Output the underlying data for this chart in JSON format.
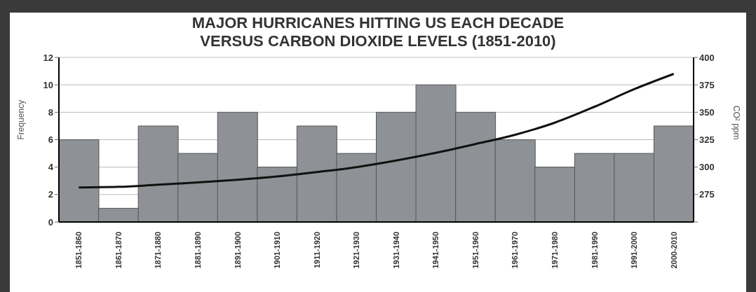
{
  "chart_data": {
    "type": "bar",
    "title": "MAJOR HURRICANES HITTING US EACH DECADE VERSUS CARBON DIOXIDE LEVELS (1851-2010)",
    "ylabel": "Frequency",
    "y2label": "CO² ppm",
    "categories": [
      "1851-1860",
      "1861-1870",
      "1871-1880",
      "1881-1890",
      "1891-1900",
      "1901-1910",
      "1911-1920",
      "1921-1930",
      "1931-1940",
      "1941-1950",
      "1951-1960",
      "1961-1970",
      "1971-1980",
      "1981-1990",
      "1991-2000",
      "2000-2010"
    ],
    "series": [
      {
        "color": "#8e9195",
        "values": [
          6,
          1,
          7,
          5,
          8,
          4,
          7,
          5,
          8,
          10,
          8,
          6,
          4,
          5,
          5,
          7
        ]
      },
      {
        "type": "line",
        "axis": "y2",
        "color": "#111111",
        "values": [
          281.5,
          282,
          284,
          286,
          288.5,
          291.5,
          295.5,
          300,
          306,
          313,
          321,
          329.5,
          340.5,
          355,
          371,
          385
        ]
      }
    ],
    "ylim": [
      0,
      12
    ],
    "yticks": [
      0,
      2,
      4,
      6,
      8,
      10,
      12
    ],
    "y2lim": [
      250,
      400
    ],
    "y2ticks": [
      {
        "value": 250,
        "label": null
      },
      275,
      300,
      325,
      350,
      375,
      400
    ],
    "grid": "y",
    "legend": false,
    "marker": "none",
    "line_style": "solid"
  }
}
